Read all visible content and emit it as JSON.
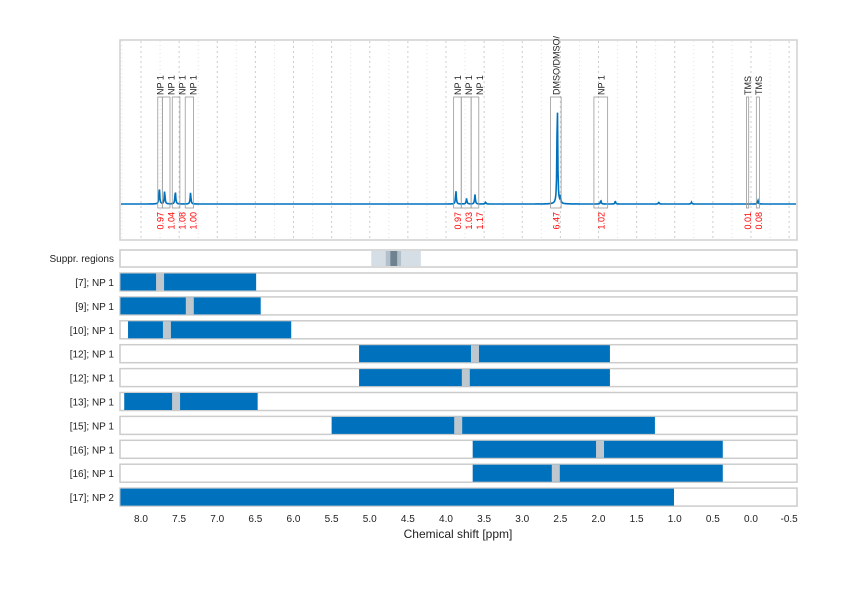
{
  "chart_data": {
    "type": "line",
    "xlabel": "Chemical shift [ppm]",
    "xlim": [
      8.27,
      -0.6
    ],
    "x_reversed": true,
    "grid": true,
    "xticks": [
      "8.0",
      "7.5",
      "7.0",
      "6.5",
      "6.0",
      "5.5",
      "5.0",
      "4.5",
      "4.0",
      "3.5",
      "3.0",
      "2.5",
      "2.0",
      "1.5",
      "1.0",
      "0.5",
      "0.0",
      "-0.5"
    ],
    "colors": {
      "spectrum": "#0072bd",
      "bar": "#0072bd",
      "integral": "#ff0000",
      "marker": "#bfc7ce"
    },
    "spectrum_peaks": [
      {
        "ppm": 7.76,
        "height": 0.09
      },
      {
        "ppm": 7.69,
        "height": 0.07
      },
      {
        "ppm": 7.55,
        "height": 0.07
      },
      {
        "ppm": 7.35,
        "height": 0.06
      },
      {
        "ppm": 3.87,
        "height": 0.07
      },
      {
        "ppm": 3.73,
        "height": 0.03
      },
      {
        "ppm": 3.62,
        "height": 0.05
      },
      {
        "ppm": 3.48,
        "height": 0.01
      },
      {
        "ppm": 2.54,
        "height": 0.55
      },
      {
        "ppm": 2.5,
        "height": 0.04
      },
      {
        "ppm": 1.97,
        "height": 0.02
      },
      {
        "ppm": 1.78,
        "height": 0.015
      },
      {
        "ppm": 1.21,
        "height": 0.01
      },
      {
        "ppm": 0.78,
        "height": 0.01
      },
      {
        "ppm": -0.09,
        "height": 0.02
      }
    ],
    "regions": [
      {
        "label": "NP 1",
        "from": 7.78,
        "to": 7.72,
        "integral": "0.97"
      },
      {
        "label": "NP 1",
        "from": 7.72,
        "to": 7.62,
        "integral": "1.04"
      },
      {
        "label": "NP 1",
        "from": 7.59,
        "to": 7.49,
        "integral": "1.08"
      },
      {
        "label": "NP 1",
        "from": 7.42,
        "to": 7.31,
        "integral": "1.00"
      },
      {
        "label": "NP 1",
        "from": 3.9,
        "to": 3.8,
        "integral": "0.97"
      },
      {
        "label": "NP 1",
        "from": 3.8,
        "to": 3.67,
        "integral": "1.03"
      },
      {
        "label": "NP 1",
        "from": 3.67,
        "to": 3.57,
        "integral": "1.17"
      },
      {
        "label": "DMSO/DMSO/",
        "from": 2.63,
        "to": 2.49,
        "integral": "6.47"
      },
      {
        "label": "NP 1",
        "from": 2.06,
        "to": 1.88,
        "integral": "1.02"
      },
      {
        "label": "TMS",
        "from": 0.06,
        "to": 0.03,
        "integral": "0.01"
      },
      {
        "label": "TMS",
        "from": -0.07,
        "to": -0.11,
        "integral": "0.08"
      }
    ],
    "suppressed_regions": {
      "label": "Suppr. regions",
      "outer": [
        4.98,
        4.33
      ],
      "inner": [
        4.79,
        4.59
      ],
      "core": [
        4.73,
        4.64
      ]
    },
    "rows": [
      {
        "label": "[7]; NP 1",
        "from": 8.27,
        "to": 6.49,
        "marker": 7.75
      },
      {
        "label": "[9]; NP 1",
        "from": 8.27,
        "to": 6.43,
        "marker": 7.36
      },
      {
        "label": "[10]; NP 1",
        "from": 8.17,
        "to": 6.03,
        "marker": 7.66
      },
      {
        "label": "[12]; NP 1",
        "from": 5.14,
        "to": 1.85,
        "marker": 3.62
      },
      {
        "label": "[12]; NP 1",
        "from": 5.14,
        "to": 1.85,
        "marker": 3.74
      },
      {
        "label": "[13]; NP 1",
        "from": 8.22,
        "to": 6.47,
        "marker": 7.54
      },
      {
        "label": "[15]; NP 1",
        "from": 5.5,
        "to": 1.26,
        "marker": 3.84
      },
      {
        "label": "[16]; NP 1",
        "from": 3.65,
        "to": 0.37,
        "marker": 1.98
      },
      {
        "label": "[16]; NP 1",
        "from": 3.65,
        "to": 0.37,
        "marker": 2.56
      },
      {
        "label": "[17]; NP 2",
        "from": 8.27,
        "to": 1.01,
        "marker": null
      }
    ]
  }
}
